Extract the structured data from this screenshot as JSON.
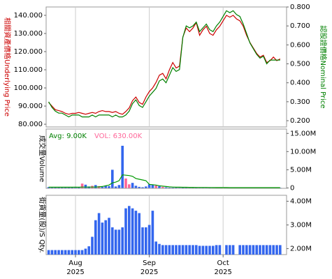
{
  "chart_data": [
    {
      "type": "line",
      "ylabel": "相關資產價格Underlying Price",
      "y2label": "認股證價格Nominal Price",
      "ylabel_color": "#cc0000",
      "y2label_color": "#008000",
      "ylim": [
        78.5,
        144.6
      ],
      "yticks": [
        {
          "value": 80,
          "label": "80.000"
        },
        {
          "value": 90,
          "label": "90.000"
        },
        {
          "value": 100,
          "label": "100.000"
        },
        {
          "value": 110,
          "label": "110.000"
        },
        {
          "value": 120,
          "label": "120.000"
        },
        {
          "value": 130,
          "label": "130.000"
        },
        {
          "value": 140,
          "label": "140.000"
        }
      ],
      "y2lim": [
        0.167,
        0.8
      ],
      "y2ticks": [
        {
          "value": 0.2,
          "label": "0.200"
        },
        {
          "value": 0.3,
          "label": "0.300"
        },
        {
          "value": 0.4,
          "label": "0.400"
        },
        {
          "value": 0.5,
          "label": "0.500"
        },
        {
          "value": 0.6,
          "label": "0.600"
        },
        {
          "value": 0.7,
          "label": "0.700"
        },
        {
          "value": 0.8,
          "label": "0.800"
        }
      ],
      "series": [
        {
          "color": "#cc0000",
          "values": [
            92,
            90,
            88,
            87.5,
            87,
            86,
            85.5,
            86,
            86,
            86.5,
            86,
            85.5,
            86,
            86.5,
            86,
            87,
            87.5,
            87,
            87,
            86.5,
            87,
            86,
            85.5,
            87,
            89,
            93,
            95,
            92,
            91,
            95,
            98,
            100,
            103,
            107,
            108,
            105,
            110,
            114,
            111,
            112,
            128,
            133,
            131,
            133,
            136,
            129,
            132,
            134,
            130,
            129,
            132,
            134,
            137,
            140,
            139,
            140,
            138,
            137,
            134,
            129,
            125,
            122,
            119,
            117,
            118,
            114,
            115,
            117,
            115,
            116
          ]
        },
        {
          "color": "#008000",
          "axis": "y2",
          "values": [
            0.3,
            0.27,
            0.25,
            0.24,
            0.24,
            0.23,
            0.22,
            0.23,
            0.23,
            0.23,
            0.22,
            0.22,
            0.22,
            0.23,
            0.22,
            0.23,
            0.23,
            0.23,
            0.23,
            0.22,
            0.23,
            0.22,
            0.22,
            0.23,
            0.25,
            0.29,
            0.31,
            0.28,
            0.27,
            0.3,
            0.33,
            0.35,
            0.37,
            0.41,
            0.42,
            0.4,
            0.44,
            0.48,
            0.46,
            0.47,
            0.64,
            0.7,
            0.69,
            0.7,
            0.72,
            0.67,
            0.69,
            0.71,
            0.68,
            0.67,
            0.7,
            0.72,
            0.75,
            0.78,
            0.77,
            0.78,
            0.76,
            0.75,
            0.71,
            0.66,
            0.61,
            0.58,
            0.55,
            0.53,
            0.54,
            0.5,
            0.52,
            0.52,
            0.52,
            0.52
          ]
        }
      ]
    },
    {
      "type": "bar",
      "ylabel": "成交量Volume",
      "annotations": [
        {
          "text": "Avg: 9.00K",
          "color": "#008000"
        },
        {
          "text": "VOL: 630.00K",
          "color": "#ff6699"
        }
      ],
      "ylim": [
        -100000,
        16200000
      ],
      "yticks": [
        0,
        {
          "value": 5000000,
          "label": "5.00M"
        },
        {
          "value": 10000000,
          "label": "10.00M"
        },
        {
          "value": 15000000,
          "label": "15.00M"
        }
      ],
      "series": [
        {
          "color": "#3366ee",
          "values": [
            250000,
            150000,
            100000,
            200000,
            150000,
            100000,
            200000,
            150000,
            300000,
            200000,
            null,
            900000,
            400000,
            null,
            800000,
            null,
            300000,
            600000,
            500000,
            5000000,
            400000,
            800000,
            11600000,
            null,
            null,
            1400000,
            600000,
            300000,
            200000,
            400000,
            1000000,
            900000,
            null,
            500000,
            null,
            200000,
            100000,
            100000,
            80000,
            60000,
            100000,
            80000,
            50000,
            60000,
            80000,
            50000,
            60000,
            50000,
            80000,
            60000,
            50000,
            60000,
            80000,
            50000,
            60000,
            50000,
            80000,
            60000,
            50000,
            60000,
            50000,
            80000,
            60000,
            50000,
            60000,
            50000,
            80000,
            60000,
            50000,
            60000
          ]
        },
        {
          "color": "#ff6699",
          "values": [
            null,
            null,
            null,
            null,
            null,
            null,
            null,
            null,
            null,
            null,
            1200000,
            null,
            null,
            600000,
            null,
            500000,
            null,
            null,
            null,
            null,
            null,
            null,
            null,
            2600000,
            1000000,
            null,
            null,
            null,
            null,
            null,
            null,
            null,
            700000,
            null,
            300000,
            null,
            null,
            null,
            null,
            null,
            null,
            null,
            null,
            null,
            null,
            null,
            null,
            null,
            null,
            null,
            null,
            null,
            null,
            null,
            null,
            null,
            null,
            null,
            null,
            null,
            null,
            null,
            null,
            null,
            null,
            null,
            null,
            null,
            null,
            null
          ]
        },
        {
          "color": "#009900",
          "type": "line",
          "values": [
            200000,
            200000,
            200000,
            200000,
            200000,
            200000,
            200000,
            200000,
            200000,
            200000,
            250000,
            250000,
            250000,
            250000,
            250000,
            300000,
            400000,
            600000,
            800000,
            1400000,
            1600000,
            2000000,
            3600000,
            3500000,
            3400000,
            3200000,
            2600000,
            2400000,
            2200000,
            2000000,
            1000000,
            900000,
            800000,
            600000,
            500000,
            400000,
            300000,
            250000,
            200000,
            200000,
            180000,
            180000,
            160000,
            160000,
            150000,
            150000,
            140000,
            140000,
            130000,
            130000,
            120000,
            120000,
            110000,
            110000,
            100000,
            100000,
            100000,
            100000,
            100000,
            100000,
            100000,
            100000,
            100000,
            100000,
            100000,
            100000,
            100000,
            100000,
            100000,
            100000
          ]
        }
      ]
    },
    {
      "type": "bar",
      "ylabel": "街貨量(股)/S Qty.",
      "categories": [
        null,
        null,
        null,
        null,
        null,
        null,
        null,
        null,
        "Aug 2025",
        null,
        null,
        null,
        null,
        null,
        null,
        null,
        null,
        null,
        null,
        null,
        null,
        null,
        null,
        null,
        null,
        null,
        null,
        null,
        null,
        null,
        "Sep 2025",
        null,
        null,
        null,
        null,
        null,
        null,
        null,
        null,
        null,
        null,
        null,
        null,
        null,
        null,
        null,
        null,
        null,
        null,
        null,
        null,
        null,
        "Oct 2025",
        null,
        null,
        null,
        null,
        null,
        null,
        null,
        null,
        null,
        null,
        null,
        null,
        null,
        null,
        null,
        null,
        null
      ],
      "ylim": [
        1750000,
        4250000
      ],
      "yticks": [
        {
          "value": 2000000,
          "label": "2.00M"
        },
        {
          "value": 3000000,
          "label": "3.00M"
        },
        {
          "value": 4000000,
          "label": "4.00M"
        }
      ],
      "series": [
        {
          "color": "#3366ee",
          "values": [
            1940000,
            1940000,
            1940000,
            1940000,
            1940000,
            1940000,
            1940000,
            1940000,
            1940000,
            1940000,
            1940000,
            2000000,
            2100000,
            2500000,
            3200000,
            3500000,
            3100000,
            3200000,
            3300000,
            2900000,
            2800000,
            2800000,
            2900000,
            3700000,
            3800000,
            3700000,
            3600000,
            3500000,
            2900000,
            2900000,
            3000000,
            3600000,
            2300000,
            2200000,
            2150000,
            2150000,
            2150000,
            2150000,
            2150000,
            2150000,
            2150000,
            2150000,
            2150000,
            2150000,
            2150000,
            2120000,
            2120000,
            2120000,
            2120000,
            2120000,
            2150000,
            2150000,
            null,
            2150000,
            2150000,
            2150000,
            null,
            2150000,
            2150000,
            2150000,
            2150000,
            2150000,
            2150000,
            2150000,
            2150000,
            2150000,
            2150000,
            2150000,
            2150000,
            2150000
          ]
        }
      ]
    }
  ]
}
